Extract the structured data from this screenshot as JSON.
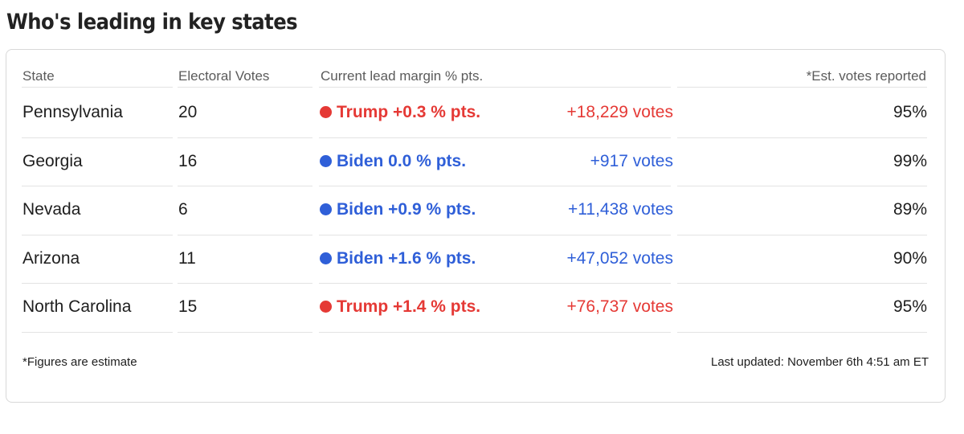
{
  "title": "Who's leading in key states",
  "table": {
    "headers": {
      "state": "State",
      "electoral_votes": "Electoral Votes",
      "lead_margin": "Current lead margin % pts.",
      "reported": "*Est. votes reported"
    },
    "rows": [
      {
        "state": "Pennsylvania",
        "electoral_votes": "20",
        "leader": "Trump",
        "lead": "Trump +0.3 % pts.",
        "votes": "+18,229 votes",
        "reported": "95%",
        "color": "#e53935"
      },
      {
        "state": "Georgia",
        "electoral_votes": "16",
        "leader": "Biden",
        "lead": "Biden 0.0 % pts.",
        "votes": "+917 votes",
        "reported": "99%",
        "color": "#2f5fd8"
      },
      {
        "state": "Nevada",
        "electoral_votes": "6",
        "leader": "Biden",
        "lead": "Biden +0.9 % pts.",
        "votes": "+11,438 votes",
        "reported": "89%",
        "color": "#2f5fd8"
      },
      {
        "state": "Arizona",
        "electoral_votes": "11",
        "leader": "Biden",
        "lead": "Biden +1.6 % pts.",
        "votes": "+47,052 votes",
        "reported": "90%",
        "color": "#2f5fd8"
      },
      {
        "state": "North Carolina",
        "electoral_votes": "15",
        "leader": "Trump",
        "lead": "Trump +1.4 % pts.",
        "votes": "+76,737 votes",
        "reported": "95%",
        "color": "#e53935"
      }
    ]
  },
  "footer": {
    "note": "*Figures are estimate",
    "last_updated": "Last updated: November 6th 4:51 am ET"
  },
  "colors": {
    "trump": "#e53935",
    "biden": "#2f5fd8"
  }
}
